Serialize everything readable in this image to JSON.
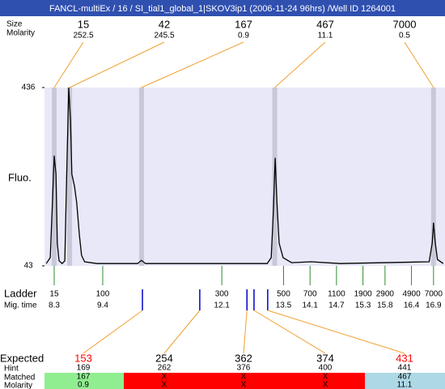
{
  "chart_data": {
    "type": "electropherogram",
    "title": "FANCL-multiEx / 16 / SI_tial1_global_1|SKOV3ip1 (2006-11-24 96hrs) /Well ID 1264001",
    "y_label": "Fluo.",
    "ylim": [
      43,
      436
    ],
    "yticks": [
      43,
      436
    ],
    "xlim": [
      8.08,
      17.16
    ],
    "plot_color": "#e8e8f8",
    "trace": {
      "color": "#000000",
      "x": [
        8.12,
        8.21,
        8.26,
        8.3,
        8.34,
        8.37,
        8.41,
        8.48,
        8.54,
        8.59,
        8.63,
        8.67,
        8.7,
        8.76,
        8.81,
        8.87,
        8.92,
        8.99,
        9.27,
        10.19,
        10.28,
        10.37,
        13.13,
        13.22,
        13.27,
        13.31,
        13.35,
        13.4,
        13.49,
        13.68,
        14.13,
        14.78,
        16.8,
        16.87,
        16.9,
        16.94,
        16.99,
        17.12
      ],
      "values": [
        48,
        61,
        182,
        286,
        245,
        93,
        54,
        48,
        54,
        272,
        436,
        361,
        245,
        218,
        182,
        111,
        66,
        52,
        48,
        48,
        55,
        48,
        48,
        61,
        164,
        281,
        182,
        93,
        61,
        50,
        52,
        48,
        52,
        93,
        138,
        93,
        57,
        48
      ]
    },
    "peaks": {
      "label_size": "Size",
      "label_molarity": "Molarity",
      "band_color": "#c8c8d8",
      "line_color": "#f0a030",
      "time": [
        8.3,
        8.65,
        10.28,
        13.3,
        16.9
      ],
      "size": [
        15,
        42,
        167,
        467,
        7000
      ],
      "molarity": [
        252.5,
        245.5,
        0.9,
        11.1,
        0.5
      ]
    },
    "ladder": {
      "label": "Ladder",
      "label_time": "Mig. time",
      "color": "#2e8b2e",
      "size": [
        15,
        100,
        300,
        500,
        700,
        1100,
        1900,
        2900,
        4900,
        7000
      ],
      "time": [
        8.3,
        9.4,
        12.1,
        13.5,
        14.1,
        14.7,
        15.3,
        15.8,
        16.4,
        16.9
      ]
    },
    "expected": {
      "label": "Expected",
      "label_hint": "Hint",
      "label_matched": "Matched",
      "label_molarity": "Molarity",
      "marker_color": "#0000cc",
      "values": [
        153,
        254,
        362,
        374,
        431
      ],
      "colors": [
        "#ff0000",
        "#000000",
        "#000000",
        "#000000",
        "#ff0000"
      ],
      "marker_time": [
        10.3,
        11.6,
        12.67,
        12.83,
        13.14
      ],
      "hint": [
        169,
        262,
        376,
        400,
        441
      ],
      "matched": [
        167,
        "X",
        "X",
        "X",
        467
      ],
      "molarity": [
        0.9,
        "X",
        "X",
        "X",
        11.1
      ],
      "band_colors": [
        "#90ee90",
        "#ff0000",
        "#ff0000",
        "#ff0000",
        "#add8e6"
      ]
    }
  }
}
